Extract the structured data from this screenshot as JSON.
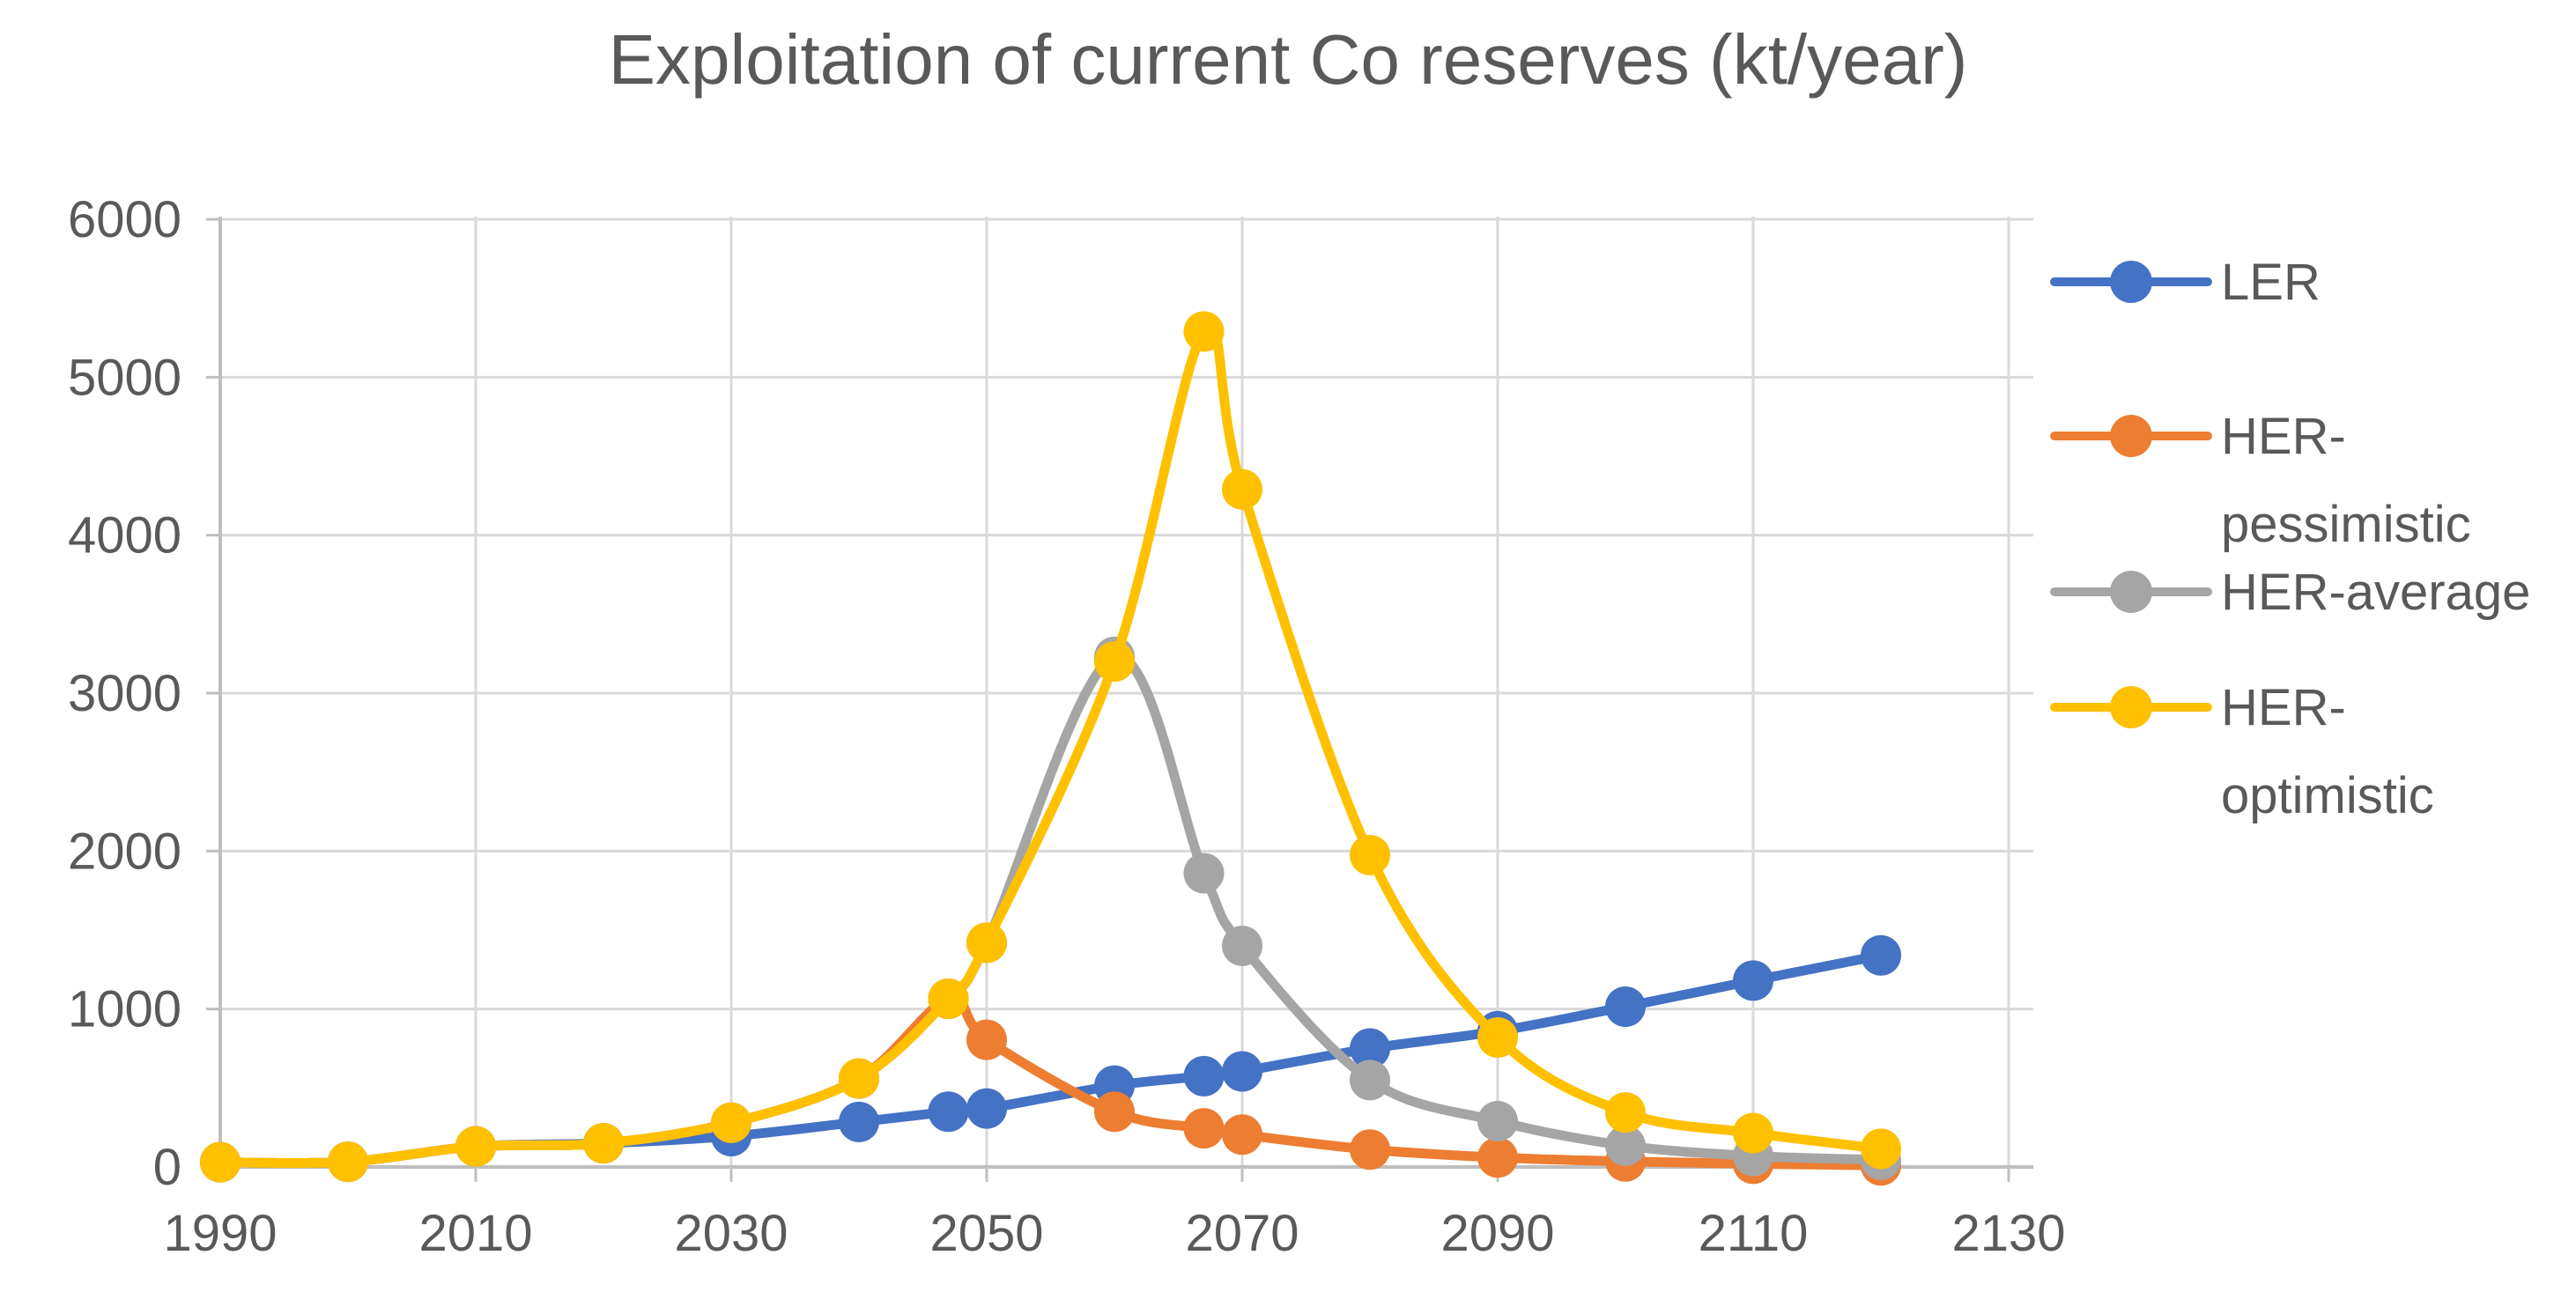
{
  "chart_data": {
    "type": "line",
    "title": "Exploitation of current Co reserves (kt/year)",
    "x_years": [
      1990,
      2000,
      2010,
      2020,
      2030,
      2040,
      2047,
      2050,
      2060,
      2067,
      2070,
      2080,
      2090,
      2100,
      2110,
      2120
    ],
    "series": [
      {
        "name": "LER",
        "color": "#4472C4",
        "legend_lines": [
          "LER"
        ],
        "values": [
          30,
          33,
          130,
          150,
          195,
          285,
          350,
          370,
          515,
          575,
          605,
          750,
          860,
          1015,
          1180,
          1340
        ]
      },
      {
        "name": "HER-pessimistic",
        "color": "#ED7D31",
        "legend_lines": [
          "HER-",
          "pessimistic"
        ],
        "values": [
          30,
          33,
          130,
          150,
          280,
          560,
          1065,
          805,
          350,
          245,
          205,
          110,
          60,
          35,
          20,
          10
        ]
      },
      {
        "name": "HER-average",
        "color": "#A5A5A5",
        "legend_lines": [
          "HER-average"
        ],
        "values": [
          30,
          33,
          130,
          150,
          280,
          560,
          1065,
          1420,
          3230,
          1860,
          1400,
          550,
          290,
          135,
          70,
          45
        ]
      },
      {
        "name": "HER-optimistic",
        "color": "#FFC000",
        "legend_lines": [
          "HER-",
          "optimistic"
        ],
        "values": [
          30,
          33,
          130,
          150,
          280,
          560,
          1065,
          1420,
          3200,
          5290,
          4290,
          1975,
          820,
          345,
          215,
          115
        ]
      }
    ],
    "x_tick_labels": [
      "1990",
      "2010",
      "2030",
      "2050",
      "2070",
      "2090",
      "2110",
      "2130"
    ],
    "y_tick_labels": [
      "0",
      "1000",
      "2000",
      "3000",
      "4000",
      "5000",
      "6000"
    ],
    "xlim": [
      1990,
      2130
    ],
    "ylim": [
      0,
      6000
    ],
    "grid": true,
    "smooth_lines": true,
    "legend_position": "right",
    "colors": {
      "grid_line": "#D9D9D9",
      "axis_line": "#BFBFBF",
      "text": "#595959",
      "background": "#FFFFFF"
    }
  }
}
